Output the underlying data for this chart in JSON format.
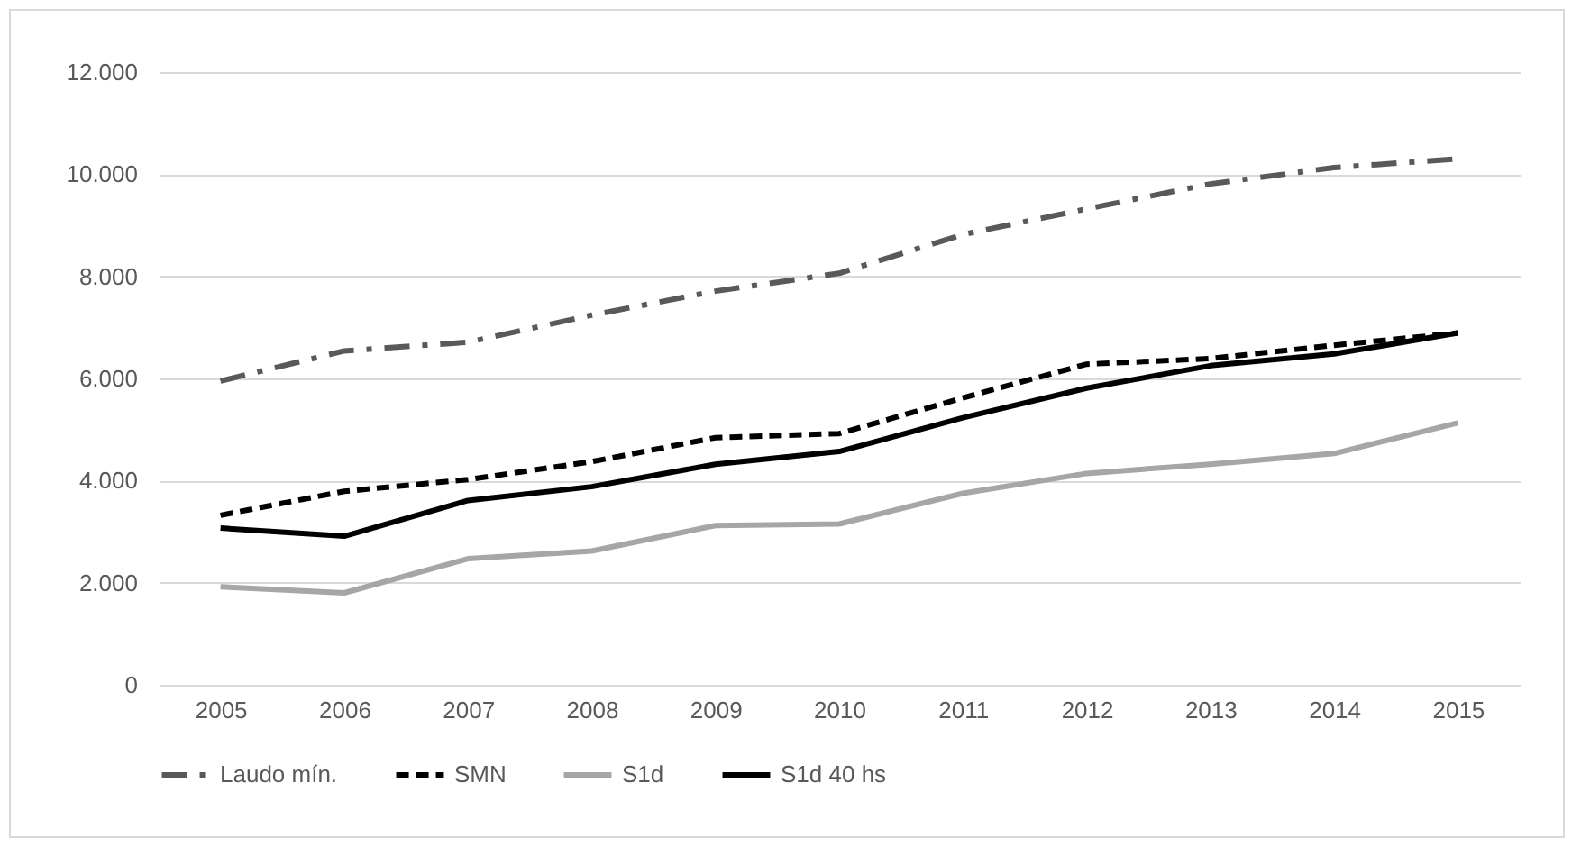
{
  "chart_data": {
    "type": "line",
    "categories": [
      "2005",
      "2006",
      "2007",
      "2008",
      "2009",
      "2010",
      "2011",
      "2012",
      "2013",
      "2014",
      "2015"
    ],
    "series": [
      {
        "name": "Laudo mín.",
        "color": "#595959",
        "line_style": "dashdot",
        "values": [
          5950,
          6540,
          6710,
          7240,
          7710,
          8060,
          8820,
          9320,
          9810,
          10130,
          10300
        ]
      },
      {
        "name": "SMN",
        "color": "#000000",
        "line_style": "dashed",
        "values": [
          3320,
          3790,
          4020,
          4370,
          4840,
          4920,
          5620,
          6280,
          6390,
          6650,
          6890
        ]
      },
      {
        "name": "S1d",
        "color": "#a6a6a6",
        "line_style": "solid",
        "values": [
          1920,
          1800,
          2470,
          2620,
          3120,
          3150,
          3750,
          4140,
          4320,
          4530,
          5130
        ]
      },
      {
        "name": "S1d  40 hs",
        "color": "#000000",
        "line_style": "solid",
        "values": [
          3070,
          2910,
          3610,
          3880,
          4320,
          4570,
          5230,
          5810,
          6250,
          6480,
          6890
        ]
      }
    ],
    "ylim": [
      0,
      12000
    ],
    "yticks": [
      {
        "value": 0,
        "label": "0"
      },
      {
        "value": 2000,
        "label": "2.000"
      },
      {
        "value": 4000,
        "label": "4.000"
      },
      {
        "value": 6000,
        "label": "6.000"
      },
      {
        "value": 8000,
        "label": "8.000"
      },
      {
        "value": 10000,
        "label": "10.000"
      },
      {
        "value": 12000,
        "label": "12.000"
      }
    ],
    "grid": "y",
    "legend": "bottom",
    "marker": "none"
  }
}
